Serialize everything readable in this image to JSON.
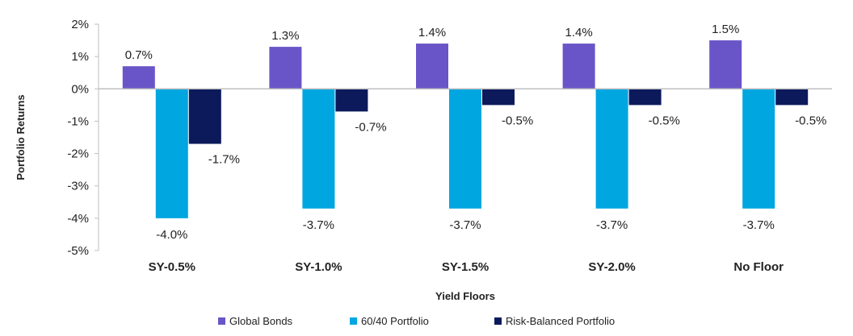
{
  "chart_data": {
    "type": "bar",
    "categories": [
      "SY-0.5%",
      "SY-1.0%",
      "SY-1.5%",
      "SY-2.0%",
      "No Floor"
    ],
    "series": [
      {
        "name": "Global Bonds",
        "color": "#6a55c8",
        "values": [
          0.7,
          1.3,
          1.4,
          1.4,
          1.5
        ],
        "labels": [
          "0.7%",
          "1.3%",
          "1.4%",
          "1.4%",
          "1.5%"
        ]
      },
      {
        "name": "60/40 Portfolio",
        "color": "#00a6e0",
        "values": [
          -4.0,
          -3.7,
          -3.7,
          -3.7,
          -3.7
        ],
        "labels": [
          "-4.0%",
          "-3.7%",
          "-3.7%",
          "-3.7%",
          "-3.7%"
        ]
      },
      {
        "name": "Risk-Balanced Portfolio",
        "color": "#0c1a5c",
        "values": [
          -1.7,
          -0.7,
          -0.5,
          -0.5,
          -0.5
        ],
        "labels": [
          "-1.7%",
          "-0.7%",
          "-0.5%",
          "-0.5%",
          "-0.5%"
        ]
      }
    ],
    "xlabel": "Yield Floors",
    "ylabel": "Portfolio Returns",
    "ylim": [
      -5,
      2
    ],
    "yticks": [
      2,
      1,
      0,
      -1,
      -2,
      -3,
      -4,
      -5
    ],
    "ytick_labels": [
      "2%",
      "1%",
      "0%",
      "-1%",
      "-2%",
      "-3%",
      "-4%",
      "-5%"
    ],
    "legend_position": "bottom",
    "grid": false
  }
}
